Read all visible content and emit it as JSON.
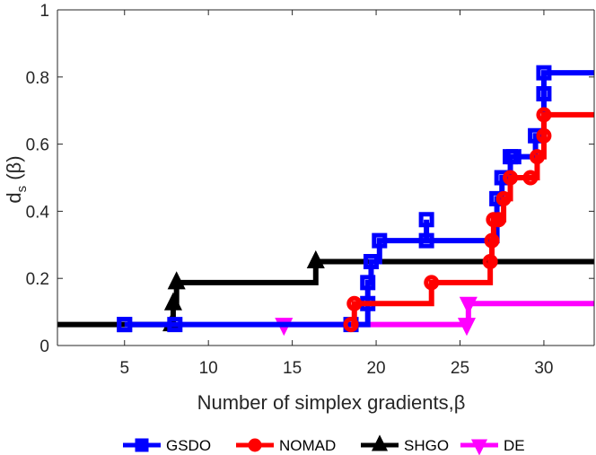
{
  "chart_data": {
    "type": "line",
    "xlabel": "Number of simplex gradients,β",
    "ylabel_main": "d",
    "ylabel_sub": "s",
    "ylabel_rest": " (β)",
    "xlim": [
      1,
      33
    ],
    "ylim": [
      0,
      1
    ],
    "xticks": [
      5,
      10,
      15,
      20,
      25,
      30
    ],
    "yticks": [
      0,
      0.2,
      0.4,
      0.6,
      0.8,
      1
    ],
    "ytick_labels": [
      "0",
      "0.2",
      "0.4",
      "0.6",
      "0.8",
      "1"
    ],
    "grid": false,
    "legend_position": "bottom",
    "series": [
      {
        "name": "GSDO",
        "color": "#0000ff",
        "marker": "square",
        "x": [
          5,
          5,
          8,
          18.5,
          19.5,
          19.5,
          19.7,
          20.2,
          23,
          23,
          27.2,
          27.5,
          28,
          28.2,
          29.5,
          30,
          30
        ],
        "y": [
          0.0625,
          0.0625,
          0.0625,
          0.0625,
          0.125,
          0.1875,
          0.25,
          0.3125,
          0.375,
          0.3125,
          0.4375,
          0.5,
          0.5625,
          0.5625,
          0.625,
          0.75,
          0.8125
        ]
      },
      {
        "name": "NOMAD",
        "color": "#ff0000",
        "marker": "circle",
        "x": [
          18.5,
          18.7,
          23.3,
          26.8,
          26.9,
          27,
          27.3,
          27.6,
          28,
          29.2,
          29.6,
          30,
          30
        ],
        "y": [
          0.0625,
          0.125,
          0.1875,
          0.25,
          0.3125,
          0.375,
          0.375,
          0.4375,
          0.5,
          0.5,
          0.5625,
          0.625,
          0.6875
        ]
      },
      {
        "name": "SHGO",
        "color": "#000000",
        "marker": "triangle-up",
        "x": [
          7.8,
          7.9,
          8.1,
          16.4
        ],
        "y": [
          0.0625,
          0.125,
          0.1875,
          0.25
        ]
      },
      {
        "name": "DE",
        "color": "#ff00ff",
        "marker": "triangle-down",
        "x": [
          14.5,
          25.4,
          25.5
        ],
        "y": [
          0.0625,
          0.0625,
          0.125
        ]
      }
    ]
  }
}
